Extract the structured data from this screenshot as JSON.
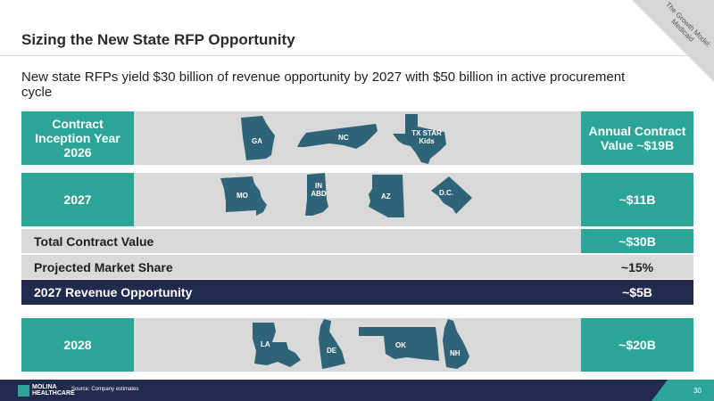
{
  "title": "Sizing the New State RFP Opportunity",
  "corner_tag": "The Growth Model: Medicaid",
  "subtitle": "New state RFPs yield $30 billion of revenue opportunity by 2027 with $50 billion in active procurement cycle",
  "row_2026": {
    "left_label": "Contract Inception Year 2026",
    "right_label": "Annual Contract Value ~$19B",
    "states": [
      "GA",
      "NC",
      "TX STAR Kids"
    ]
  },
  "row_2027": {
    "left_label": "2027",
    "right_label": "~$11B",
    "states": [
      "MO",
      "IN ABD",
      "AZ",
      "D.C."
    ]
  },
  "summary_rows": [
    {
      "label": "Total Contract Value",
      "value": "~$30B"
    },
    {
      "label": "Projected Market Share",
      "value": "~15%"
    },
    {
      "label": "2027 Revenue Opportunity",
      "value": "~$5B"
    }
  ],
  "row_2028": {
    "left_label": "2028",
    "right_label": "~$20B",
    "states": [
      "LA",
      "DE",
      "OK",
      "NH"
    ]
  },
  "footer": {
    "logo_text": "MOLINA HEALTHCARE",
    "source": "Source: Company estimates",
    "page_number": "30"
  },
  "colors": {
    "teal": "#2aa597",
    "navy": "#222a4e",
    "gray": "#d9d9d9",
    "state_fill": "#2f6478"
  }
}
